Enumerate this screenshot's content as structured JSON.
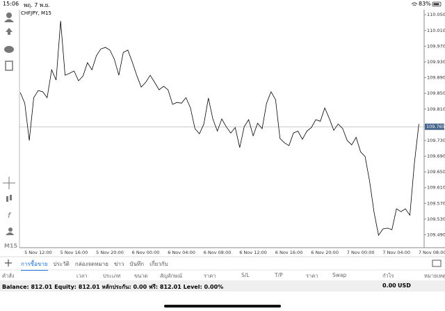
{
  "status_bar": {
    "time": "15:06",
    "date": "พฤ. 7 พ.ย.",
    "battery": "83%"
  },
  "sidebar": {
    "timeframe": "M15"
  },
  "chart_data": {
    "type": "line",
    "title": "CHFJPY, M15",
    "color": "#000000",
    "categories": [
      null,
      null,
      null,
      null,
      "5 Nov 12:00",
      null,
      null,
      null,
      null,
      null,
      null,
      null,
      "5 Nov 16:00",
      null,
      null,
      null,
      null,
      null,
      null,
      null,
      "5 Nov 20:00",
      null,
      null,
      null,
      null,
      null,
      null,
      null,
      "6 Nov 00:00",
      null,
      null,
      null,
      null,
      null,
      null,
      null,
      "6 Nov 04:00",
      null,
      null,
      null,
      null,
      null,
      null,
      null,
      "6 Nov 08:00",
      null,
      null,
      null,
      null,
      null,
      null,
      null,
      "6 Nov 12:00",
      null,
      null,
      null,
      null,
      null,
      null,
      null,
      "6 Nov 16:00",
      null,
      null,
      null,
      null,
      null,
      null,
      null,
      "6 Nov 20:00",
      null,
      null,
      null,
      null,
      null,
      null,
      null,
      "7 Nov 00:00",
      null,
      null,
      null,
      null,
      null,
      null,
      null,
      "7 Nov 04:00",
      null,
      null,
      null,
      null,
      null,
      null,
      null,
      "7 Nov 08:00"
    ],
    "values": [
      109.852,
      109.825,
      109.73,
      109.839,
      109.857,
      109.854,
      109.839,
      109.91,
      109.884,
      110.034,
      109.896,
      109.901,
      109.907,
      109.882,
      109.894,
      109.928,
      109.91,
      109.946,
      109.963,
      109.967,
      109.96,
      109.937,
      109.896,
      109.954,
      109.96,
      109.93,
      109.896,
      109.866,
      109.878,
      109.896,
      109.878,
      109.859,
      109.868,
      109.859,
      109.822,
      109.827,
      109.825,
      109.839,
      109.813,
      109.76,
      109.747,
      109.772,
      109.838,
      109.785,
      109.754,
      109.785,
      109.765,
      109.749,
      109.763,
      109.712,
      109.765,
      109.783,
      109.742,
      109.774,
      109.76,
      109.825,
      109.854,
      109.834,
      109.735,
      109.724,
      109.717,
      109.749,
      109.754,
      109.733,
      109.754,
      109.763,
      109.783,
      109.779,
      109.813,
      109.786,
      109.756,
      109.772,
      109.76,
      109.73,
      109.719,
      109.738,
      109.701,
      109.689,
      109.627,
      109.547,
      109.489,
      109.505,
      109.507,
      109.503,
      109.556,
      109.549,
      109.556,
      109.54,
      109.671,
      109.772,
      null,
      null,
      null
    ],
    "ylim": [
      109.459,
      110.061
    ],
    "yticks": [
      {
        "value": 110.05,
        "label": "110.050"
      },
      {
        "value": 110.01,
        "label": "110.010"
      },
      {
        "value": 109.97,
        "label": "109.970"
      },
      {
        "value": 109.93,
        "label": "109.930"
      },
      {
        "value": 109.89,
        "label": "109.890"
      },
      {
        "value": 109.85,
        "label": "109.850"
      },
      {
        "value": 109.81,
        "label": "109.810"
      },
      {
        "value": 109.73,
        "label": "109.730"
      },
      {
        "value": 109.69,
        "label": "109.690"
      },
      {
        "value": 109.65,
        "label": "109.650"
      },
      {
        "value": 109.61,
        "label": "109.610"
      },
      {
        "value": 109.57,
        "label": "109.570"
      },
      {
        "value": 109.53,
        "label": "109.530"
      },
      {
        "value": 109.49,
        "label": "109.490"
      }
    ],
    "current_price": {
      "value": 109.765,
      "label": "109.765"
    },
    "grid": false
  },
  "tabs": [
    "การซื้อขาย",
    "ประวัติ",
    "กล่องจดหมาย",
    "ข่าว",
    "บันทึก",
    "เกี่ยวกับ"
  ],
  "table": {
    "headers": [
      "คำสั่ง",
      "เวลา",
      "ประเภท",
      "ขนาด",
      "สัญลักษณ์",
      "ราคา",
      "S/L",
      "T/P",
      "ราคา",
      "Swap",
      "กำไร",
      "หมายเหตุ"
    ],
    "summary": "Balance: 812.01 Equity: 812.01 หลักประกัน: 0.00 ฟรี: 812.01 Level: 0.00%",
    "profit": "0.00",
    "currency": "USD"
  }
}
